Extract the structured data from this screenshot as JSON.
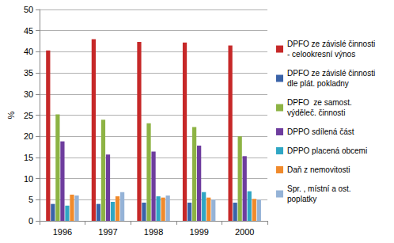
{
  "chart_data": {
    "type": "bar",
    "y_label": "%",
    "categories": [
      "1996",
      "1997",
      "1998",
      "1999",
      "2000"
    ],
    "series": [
      {
        "name": "DPFO ze závislé činnosti - celookresní výnos",
        "color": "#c62828",
        "values": [
          40.3,
          43.0,
          42.3,
          42.2,
          41.5
        ]
      },
      {
        "name": "DPFO ze závislé činnosti dle plát. pokladny",
        "color": "#3a63a8",
        "values": [
          4.0,
          4.0,
          4.3,
          4.3,
          4.3
        ]
      },
      {
        "name": "DPFO  ze samost. výděleč. činnosti",
        "color": "#8db344",
        "values": [
          25.2,
          23.9,
          23.1,
          22.2,
          20.0
        ]
      },
      {
        "name": "DPPO sdílená část",
        "color": "#6e3d9e",
        "values": [
          18.8,
          15.7,
          16.4,
          17.8,
          15.3
        ]
      },
      {
        "name": "DPPO placená obcemi",
        "color": "#2fa6c4",
        "values": [
          3.6,
          4.5,
          5.8,
          6.8,
          7.0
        ]
      },
      {
        "name": "Daň z nemovitosti",
        "color": "#f08a2c",
        "values": [
          6.2,
          5.8,
          5.5,
          5.5,
          5.2
        ]
      },
      {
        "name": "Spr. , místní a ost. poplatky",
        "color": "#95b3d7",
        "values": [
          6.0,
          6.8,
          6.0,
          5.0,
          5.0
        ]
      }
    ],
    "ylim": [
      0,
      50
    ],
    "yticks": [
      0,
      5,
      10,
      15,
      20,
      25,
      30,
      35,
      40,
      45,
      50
    ],
    "grid": true,
    "legend": "right"
  }
}
